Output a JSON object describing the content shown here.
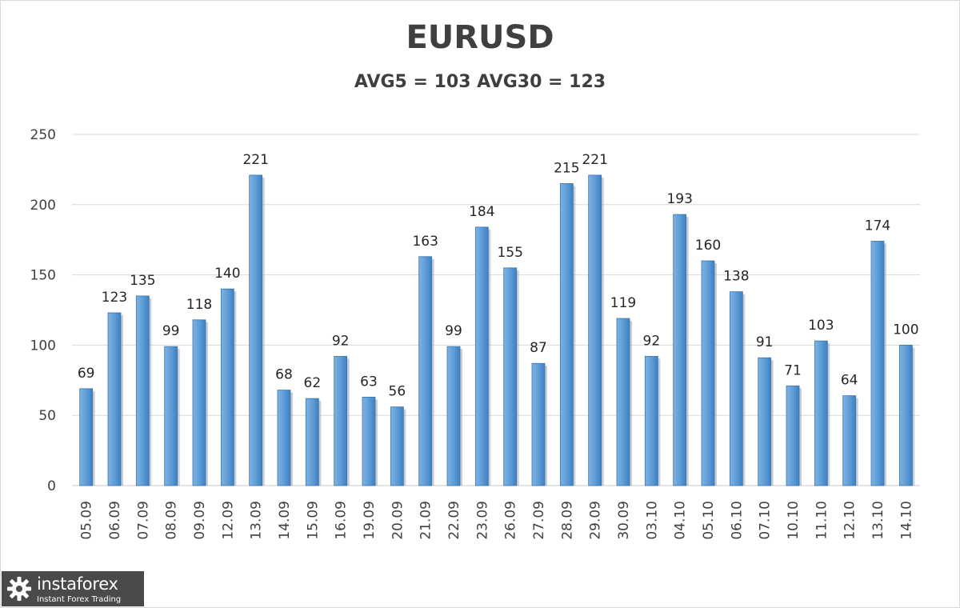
{
  "chart_data": {
    "type": "bar",
    "title": "EURUSD",
    "subtitle": "AVG5 = 103 AVG30 = 123",
    "categories": [
      "05.09",
      "06.09",
      "07.09",
      "08.09",
      "09.09",
      "12.09",
      "13.09",
      "14.09",
      "15.09",
      "16.09",
      "19.09",
      "20.09",
      "21.09",
      "22.09",
      "23.09",
      "26.09",
      "27.09",
      "28.09",
      "29.09",
      "30.09",
      "03.10",
      "04.10",
      "05.10",
      "06.10",
      "07.10",
      "10.10",
      "11.10",
      "12.10",
      "13.10",
      "14.10"
    ],
    "values": [
      69,
      123,
      135,
      99,
      118,
      140,
      221,
      68,
      62,
      92,
      63,
      56,
      163,
      99,
      184,
      155,
      87,
      215,
      221,
      119,
      92,
      193,
      160,
      138,
      91,
      71,
      103,
      64,
      174,
      100
    ],
    "ylim": [
      0,
      250
    ],
    "yticks": [
      0,
      50,
      100,
      150,
      200,
      250
    ],
    "grid": true,
    "bar_color": "#5b9bd5",
    "data_labels": true
  },
  "watermark": {
    "name": "instaforex",
    "tagline": "Instant Forex Trading",
    "logo_icon": "gear-icon"
  }
}
